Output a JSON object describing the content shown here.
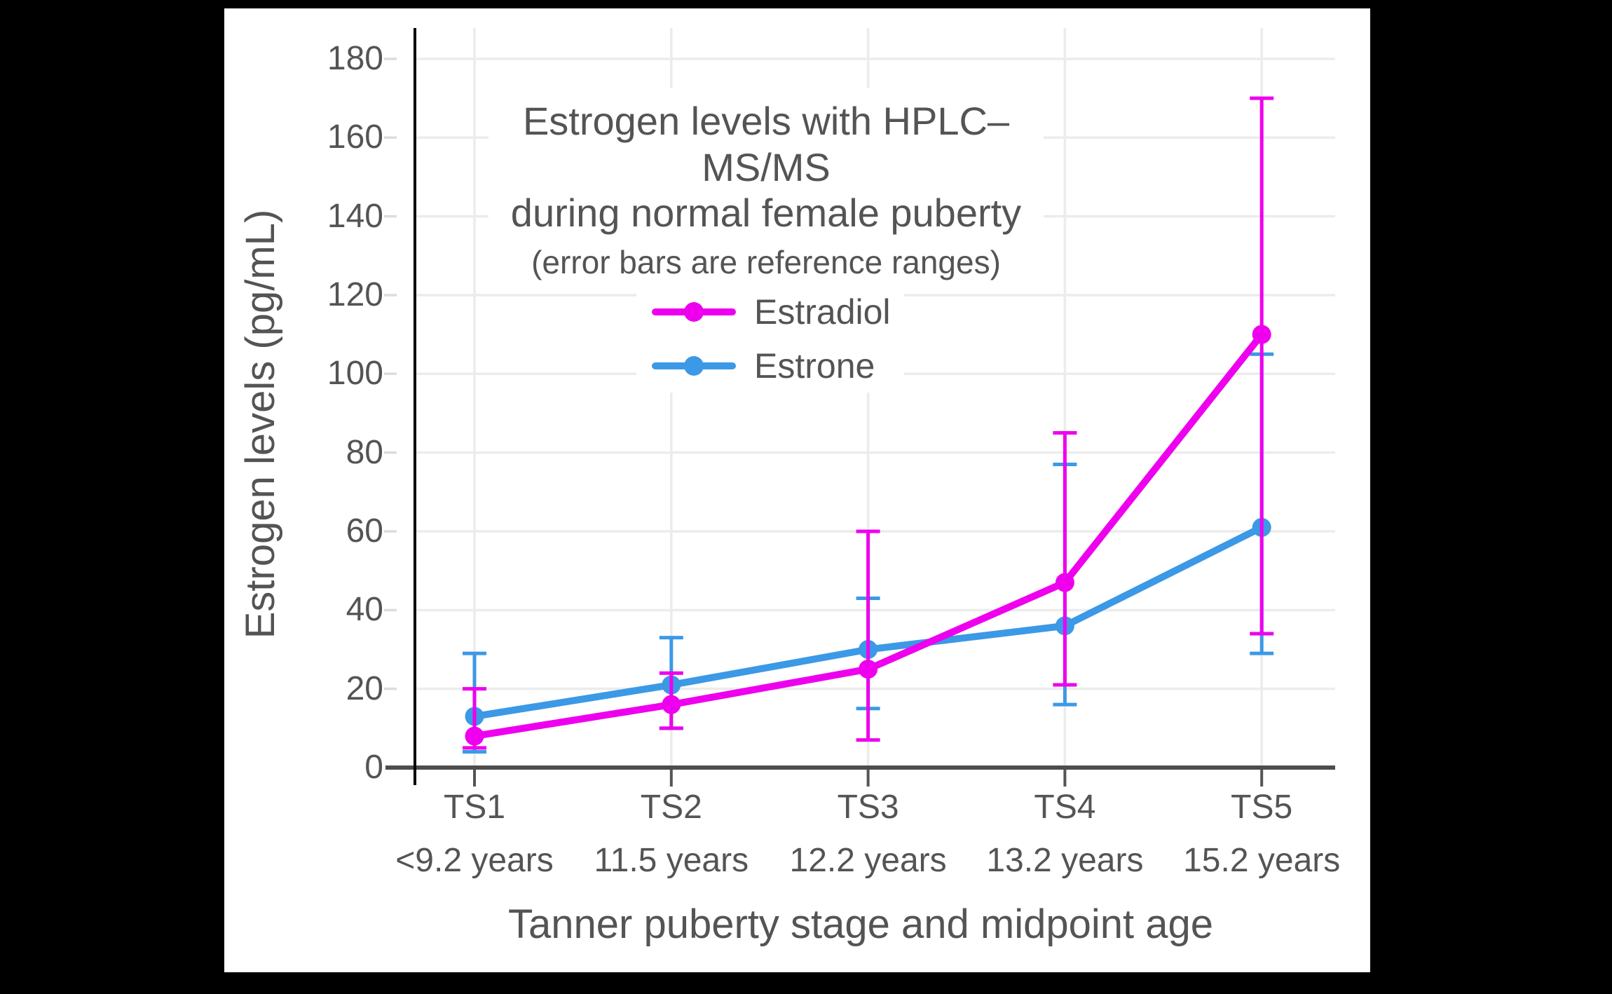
{
  "window": {
    "background": "#000000",
    "panel_background": "#ffffff",
    "text_color": "#545454",
    "grid_color": "#ECECEC",
    "axis_color": "#4D4D4D"
  },
  "chart_data": {
    "type": "line",
    "title_line1": "Estrogen levels with HPLC–MS/MS",
    "title_line2": "during normal female puberty",
    "subtitle": "(error bars are reference ranges)",
    "xlabel": "Tanner puberty stage and midpoint age",
    "ylabel": "Estrogen levels (pg/mL)",
    "categories": [
      "TS1",
      "TS2",
      "TS3",
      "TS4",
      "TS5"
    ],
    "category_sublabels": [
      "<9.2 years",
      "11.5 years",
      "12.2 years",
      "13.2 years",
      "15.2 years"
    ],
    "y_ticks": [
      0,
      20,
      40,
      60,
      80,
      100,
      120,
      140,
      160,
      180
    ],
    "ylim": [
      0,
      188
    ],
    "grid": true,
    "legend_position": "upper-center",
    "error_bars": "reference ranges",
    "series": [
      {
        "name": "Estradiol",
        "color": "#EE00EE",
        "values": [
          8,
          16,
          25,
          47,
          110
        ],
        "error_low": [
          5,
          10,
          7,
          21,
          34
        ],
        "error_high": [
          20,
          24,
          60,
          85,
          170
        ]
      },
      {
        "name": "Estrone",
        "color": "#3B99E6",
        "values": [
          13,
          21,
          30,
          36,
          61
        ],
        "error_low": [
          4,
          10,
          15,
          16,
          29
        ],
        "error_high": [
          29,
          33,
          43,
          77,
          105
        ]
      }
    ]
  }
}
